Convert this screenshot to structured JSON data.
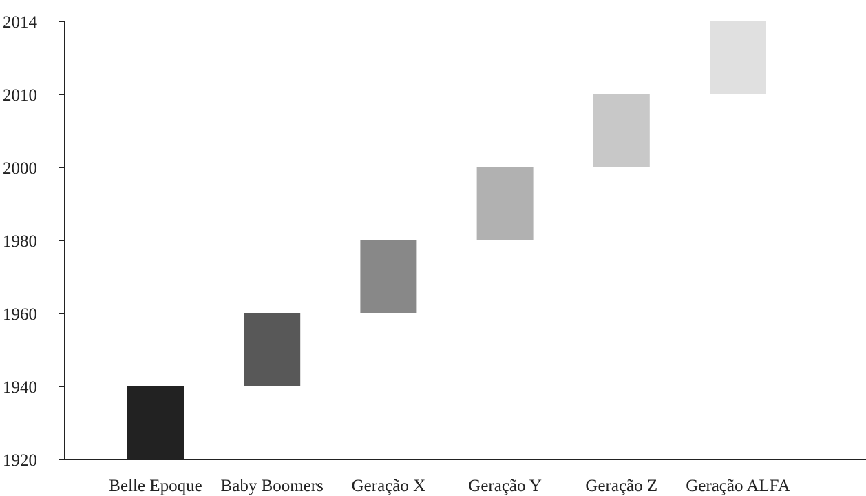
{
  "chart_data": {
    "type": "bar",
    "subtype": "floating-range",
    "categories": [
      "Belle Epoque",
      "Baby Boomers",
      "Geração X",
      "Geração Y",
      "Geração Z",
      "Geração ALFA"
    ],
    "ranges": [
      [
        1920,
        1940
      ],
      [
        1940,
        1960
      ],
      [
        1960,
        1980
      ],
      [
        1980,
        2000
      ],
      [
        2000,
        2010
      ],
      [
        2010,
        2014
      ]
    ],
    "colors": [
      "#222222",
      "#585858",
      "#888888",
      "#b1b1b1",
      "#c8c8c8",
      "#e0e0e0"
    ],
    "y_ticks": [
      "1920",
      "1940",
      "1960",
      "1980",
      "2000",
      "2010",
      "2014"
    ],
    "y_scale": "categorical-even-spacing",
    "grid": false,
    "legend": "none",
    "title": "",
    "xlabel": "",
    "ylabel": ""
  }
}
